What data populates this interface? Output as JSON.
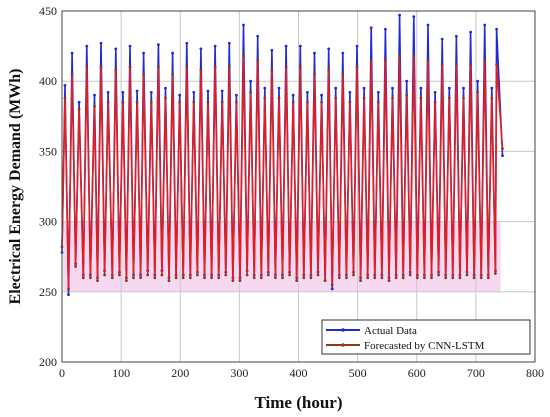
{
  "chart_data": {
    "type": "line",
    "title": "",
    "xlabel": "Time (hour)",
    "ylabel": "Electrical Energy Demand (MWh)",
    "xlim": [
      0,
      800
    ],
    "ylim": [
      200,
      450
    ],
    "x_ticks": [
      "0",
      "100",
      "200",
      "300",
      "400",
      "500",
      "600",
      "700",
      "800"
    ],
    "y_ticks": [
      "200",
      "250",
      "300",
      "350",
      "400",
      "450"
    ],
    "grid": true,
    "legend_position": "bottom-right",
    "series": [
      {
        "name": "Actual Data",
        "color": "#1f2bd6",
        "marker": "dot",
        "peak_hours": [
          5,
          17,
          29,
          42,
          55,
          66,
          78,
          91,
          103,
          115,
          127,
          138,
          151,
          163,
          175,
          187,
          199,
          211,
          223,
          235,
          247,
          259,
          271,
          283,
          295,
          307,
          319,
          331,
          343,
          355,
          367,
          379,
          391,
          403,
          415,
          427,
          439,
          451,
          463,
          475,
          487,
          499,
          511,
          523,
          535,
          547,
          559,
          571,
          583,
          595,
          607,
          619,
          631,
          643,
          655,
          667,
          679,
          691,
          703,
          715,
          727,
          735
        ],
        "peaks": [
          397,
          420,
          385,
          425,
          390,
          427,
          392,
          423,
          392,
          425,
          393,
          420,
          392,
          426,
          395,
          420,
          390,
          427,
          392,
          423,
          393,
          425,
          393,
          427,
          390,
          440,
          400,
          432,
          395,
          422,
          395,
          425,
          390,
          425,
          392,
          420,
          390,
          423,
          395,
          420,
          392,
          425,
          395,
          438,
          392,
          437,
          395,
          447,
          400,
          446,
          395,
          440,
          392,
          430,
          395,
          432,
          395,
          435,
          400,
          440,
          395,
          437
        ],
        "trough_hours": [
          11,
          23,
          36,
          48,
          60,
          72,
          85,
          97,
          109,
          121,
          133,
          145,
          157,
          169,
          181,
          193,
          205,
          217,
          229,
          241,
          253,
          265,
          277,
          289,
          301,
          313,
          325,
          337,
          349,
          361,
          373,
          385,
          397,
          409,
          421,
          433,
          445,
          457,
          469,
          481,
          493,
          505,
          517,
          529,
          541,
          553,
          565,
          577,
          589,
          601,
          613,
          625,
          637,
          649,
          661,
          673,
          685,
          697,
          709,
          721,
          733
        ],
        "troughs": [
          248,
          270,
          262,
          262,
          260,
          265,
          262,
          264,
          260,
          262,
          262,
          265,
          262,
          265,
          260,
          262,
          262,
          262,
          264,
          262,
          262,
          262,
          264,
          260,
          260,
          265,
          262,
          262,
          264,
          262,
          262,
          264,
          260,
          262,
          262,
          264,
          258,
          252,
          262,
          262,
          264,
          260,
          262,
          262,
          262,
          260,
          262,
          262,
          264,
          262,
          262,
          262,
          264,
          262,
          262,
          262,
          264,
          262,
          262,
          262,
          265
        ],
        "end": [
          745,
          347
        ]
      },
      {
        "name": "Forecasted by CNN-LSTM",
        "color": "#8b3a1a",
        "marker": "dot",
        "peak_hours": [
          5,
          17,
          29,
          42,
          55,
          66,
          78,
          91,
          103,
          115,
          127,
          138,
          151,
          163,
          175,
          187,
          199,
          211,
          223,
          235,
          247,
          259,
          271,
          283,
          295,
          307,
          319,
          331,
          343,
          355,
          367,
          379,
          391,
          403,
          415,
          427,
          439,
          451,
          463,
          475,
          487,
          499,
          511,
          523,
          535,
          547,
          559,
          571,
          583,
          595,
          607,
          619,
          631,
          643,
          655,
          667,
          679,
          691,
          703,
          715,
          727,
          735
        ],
        "peaks": [
          388,
          405,
          380,
          410,
          382,
          410,
          385,
          408,
          385,
          410,
          385,
          405,
          385,
          410,
          388,
          405,
          385,
          410,
          385,
          408,
          385,
          410,
          385,
          410,
          385,
          418,
          392,
          415,
          388,
          408,
          388,
          410,
          385,
          410,
          385,
          405,
          385,
          408,
          388,
          405,
          385,
          410,
          388,
          415,
          385,
          415,
          388,
          418,
          390,
          418,
          388,
          415,
          385,
          412,
          388,
          412,
          388,
          412,
          392,
          415,
          388,
          412
        ],
        "trough_hours": [
          11,
          23,
          36,
          48,
          60,
          72,
          85,
          97,
          109,
          121,
          133,
          145,
          157,
          169,
          181,
          193,
          205,
          217,
          229,
          241,
          253,
          265,
          277,
          289,
          301,
          313,
          325,
          337,
          349,
          361,
          373,
          385,
          397,
          409,
          421,
          433,
          445,
          457,
          469,
          481,
          493,
          505,
          517,
          529,
          541,
          553,
          565,
          577,
          589,
          601,
          613,
          625,
          637,
          649,
          661,
          673,
          685,
          697,
          709,
          721,
          733
        ],
        "troughs": [
          252,
          268,
          260,
          260,
          258,
          262,
          260,
          262,
          258,
          260,
          260,
          262,
          260,
          262,
          258,
          260,
          260,
          260,
          262,
          260,
          260,
          260,
          262,
          258,
          258,
          262,
          260,
          260,
          262,
          260,
          260,
          262,
          258,
          260,
          260,
          262,
          258,
          255,
          260,
          260,
          262,
          258,
          260,
          260,
          260,
          258,
          260,
          260,
          262,
          260,
          260,
          260,
          262,
          260,
          260,
          260,
          262,
          260,
          260,
          260,
          263
        ],
        "end": [
          745,
          352
        ]
      }
    ],
    "band_color": "#f4d2ee",
    "line_color": "#e02020"
  }
}
